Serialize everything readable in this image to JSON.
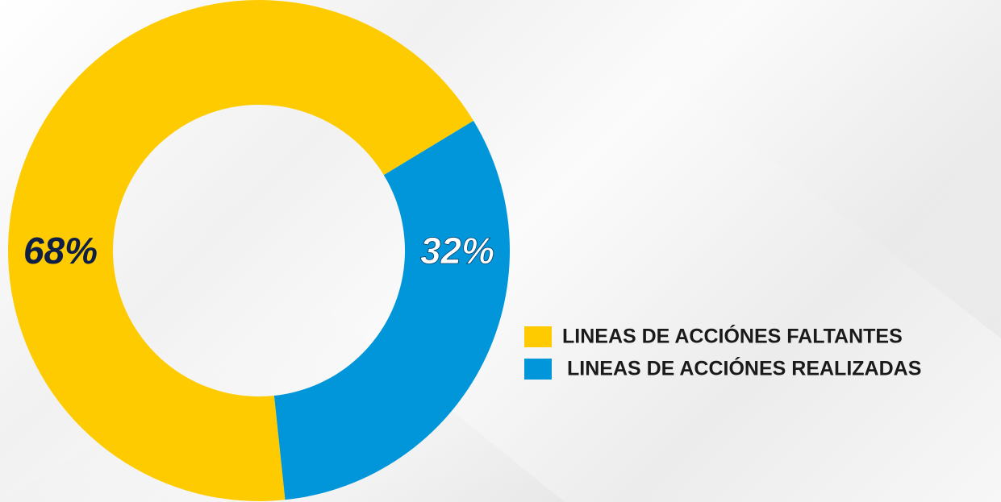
{
  "chart_data": {
    "type": "donut",
    "categories": [
      "LINEAS DE ACCIÓNES FALTANTES",
      "LINEAS DE ACCIÓNES REALIZADAS"
    ],
    "values": [
      68,
      32
    ],
    "value_labels": [
      "68%",
      "32%"
    ],
    "colors": [
      "#fecb00",
      "#0096d9"
    ],
    "label_colors": [
      "#0f1e45",
      "#ffffff"
    ],
    "legend": "right"
  }
}
